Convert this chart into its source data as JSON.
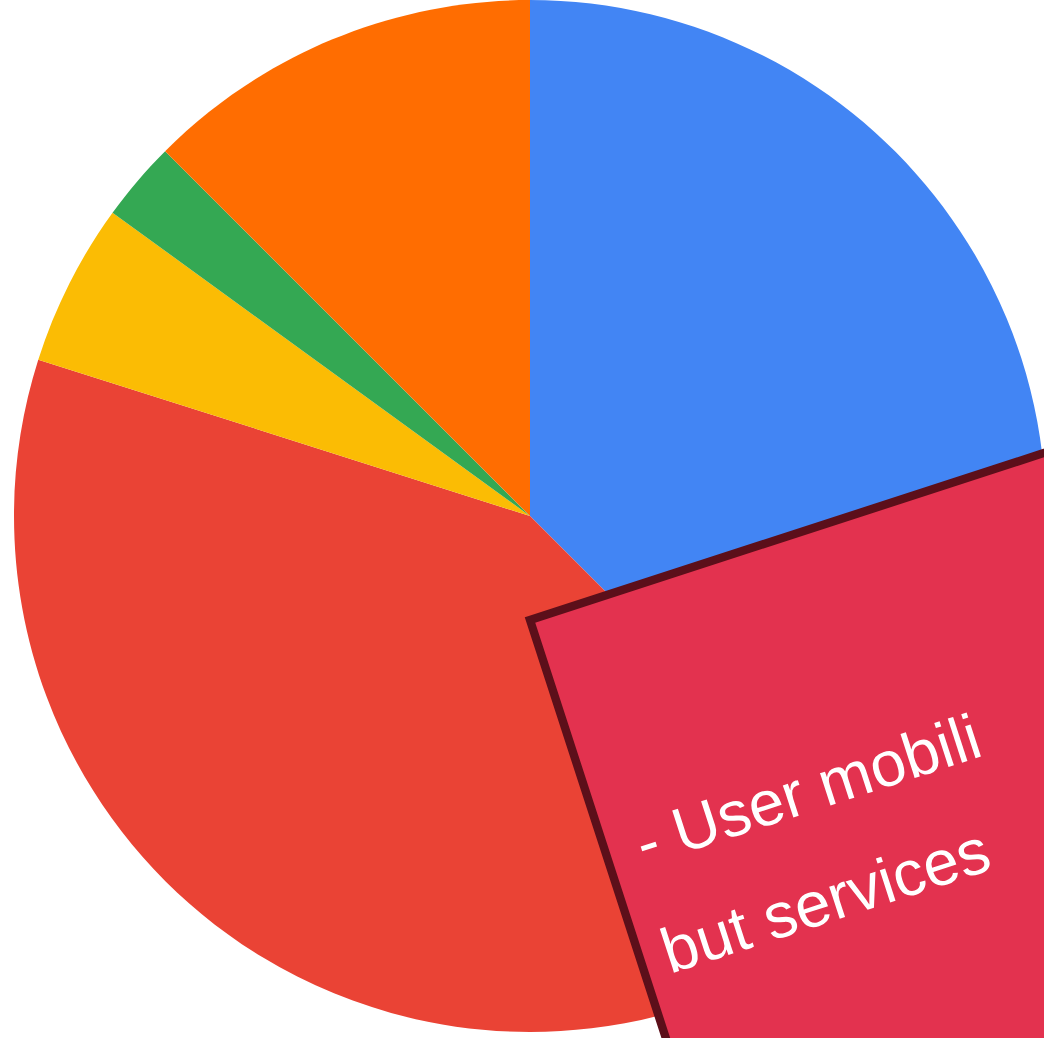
{
  "chart_data": {
    "type": "pie",
    "categories": [
      null,
      null,
      null,
      null,
      null
    ],
    "values": [
      37.5,
      42.4,
      5.1,
      2.5,
      12.5
    ],
    "colors": [
      "#4285f4",
      "#ea4335",
      "#fbbc04",
      "#34a853",
      "#ff6d01"
    ],
    "annotations": [
      "- User mobili",
      "but services"
    ]
  }
}
